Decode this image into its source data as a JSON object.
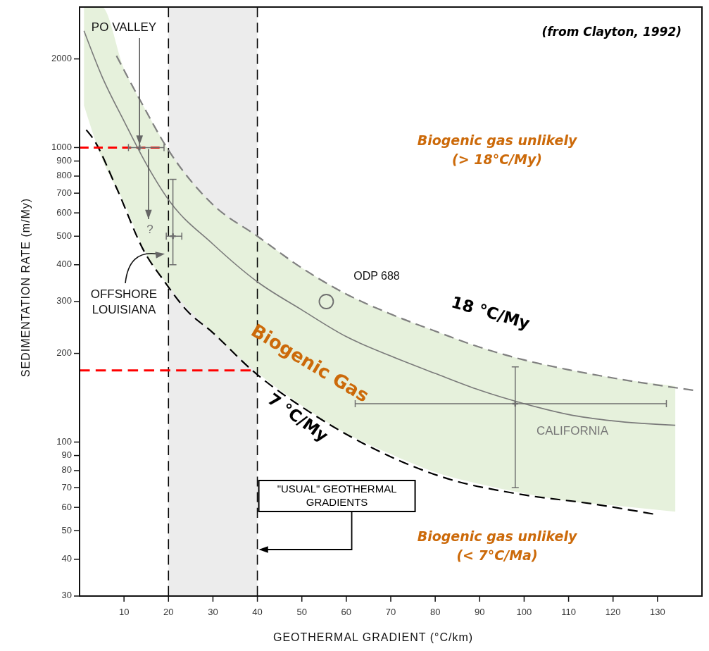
{
  "chart_data": {
    "type": "line",
    "xlabel": "GEOTHERMAL GRADIENT (°C/km)",
    "ylabel": "SEDIMENTATION RATE (m/My)",
    "xlim": [
      0,
      140
    ],
    "xticks": [
      10,
      20,
      30,
      40,
      50,
      60,
      70,
      80,
      90,
      100,
      110,
      120,
      130
    ],
    "ylim": [
      30,
      3000
    ],
    "yticks": [
      30,
      40,
      50,
      60,
      70,
      80,
      90,
      100,
      200,
      300,
      400,
      500,
      600,
      700,
      800,
      900,
      1000,
      2000
    ],
    "log": "y",
    "grid": false,
    "legend": false,
    "series": [
      {
        "color": "#7a7a7a",
        "line_style": "solid",
        "x": [
          1,
          5,
          10,
          15,
          20,
          30,
          40,
          50,
          60,
          70,
          80,
          90,
          100,
          110,
          120,
          134
        ],
        "values": [
          2490,
          1750,
          1230,
          880,
          665,
          470,
          350,
          281,
          228,
          196,
          171,
          150,
          135,
          124,
          118,
          114
        ],
        "upper": [
          3000,
          3000,
          1850,
          1330,
          980,
          640,
          500,
          390,
          318,
          272,
          238,
          210,
          190,
          176,
          165,
          155
        ],
        "lower": [
          1390,
          920,
          650,
          435,
          340,
          235,
          172,
          133,
          107,
          91,
          79,
          72,
          67,
          63,
          61,
          58
        ]
      },
      {
        "name": "18 °C/My",
        "color": "#808080",
        "line_style": "dashed",
        "x": [
          8.3,
          13.6,
          20,
          30,
          40,
          50,
          60,
          70,
          80,
          90,
          100,
          110,
          120,
          138
        ],
        "values": [
          2050,
          1450,
          980,
          640,
          500,
          390,
          318,
          272,
          238,
          210,
          190,
          176,
          165,
          150
        ]
      },
      {
        "name": "7 °C/My",
        "color": "#000000",
        "line_style": "dashed",
        "x": [
          1.5,
          3,
          8.3,
          14.6,
          18.8,
          24,
          30,
          38.5,
          53,
          68.7,
          82.9,
          97.8,
          115.9,
          129
        ],
        "values": [
          1148,
          1075,
          730,
          442,
          356,
          281,
          235,
          177,
          123,
          91,
          75,
          67,
          61.5,
          57
        ]
      },
      {
        "color": "#ff0000",
        "line_style": "dashed",
        "x": [
          0,
          18
        ],
        "values": [
          1000,
          1000
        ]
      },
      {
        "color": "#ff0000",
        "line_style": "dashed",
        "x": [
          0,
          38.5
        ],
        "values": [
          175,
          175
        ]
      },
      {
        "type": "scatter",
        "color": "#6e6e6e",
        "marker": "cross",
        "x": [
          13.5,
          21,
          98
        ],
        "values": [
          1000,
          500,
          135
        ],
        "errors": [
          null,
          [
            400,
            780
          ],
          [
            70,
            180
          ]
        ],
        "xerrors": [
          [
            11,
            19
          ],
          [
            19.5,
            23
          ],
          [
            62,
            132
          ]
        ]
      },
      {
        "type": "scatter",
        "color": "#6e6e6e",
        "marker": "circle",
        "x": [
          55.5
        ],
        "values": [
          300
        ]
      }
    ],
    "ref_lines": [
      {
        "axis": "x",
        "value": 20,
        "color": "#000000",
        "line_style": "dashed"
      },
      {
        "axis": "x",
        "value": 40,
        "color": "#000000",
        "line_style": "dashed"
      }
    ],
    "bands": [
      {
        "axis": "x",
        "from": 20,
        "to": 40,
        "label": "\"USUAL\" GEOTHERMAL\nGRADIENTS",
        "color": "#ececec"
      }
    ],
    "annotations": [
      {
        "text": "PO VALLEY",
        "x": 13.5,
        "y": 1000
      },
      {
        "text": "?",
        "x": 15.5,
        "y": 1000
      },
      "OFFSHORE\nLOUISIANA",
      "ODP 688",
      "CALIFORNIA",
      "(from Clayton, 1992)",
      "Biogenic Gas",
      "Biogenic gas unlikely\n(> 18°C/My)",
      "Biogenic gas unlikely\n(< 7°C/Ma)"
    ]
  }
}
